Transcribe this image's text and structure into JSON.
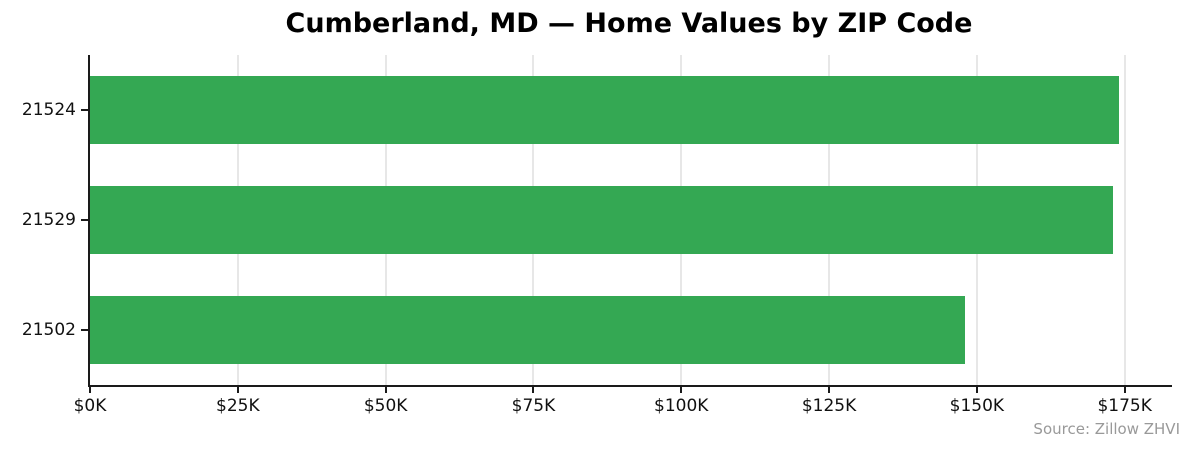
{
  "colors": {
    "bar": "#34a853",
    "grid": "#e7e7e7",
    "axis": "#1a1a1a",
    "source_text": "#999999",
    "background": "#ffffff"
  },
  "chart_data": {
    "type": "bar",
    "orientation": "horizontal",
    "title": "Cumberland, MD — Home Values by ZIP Code",
    "categories": [
      "21524",
      "21529",
      "21502"
    ],
    "values": [
      174000,
      173000,
      148000
    ],
    "values_label_unit": "USD",
    "xlabel": "",
    "ylabel": "",
    "xlim": [
      0,
      183000
    ],
    "xticks": [
      0,
      25000,
      50000,
      75000,
      100000,
      125000,
      150000,
      175000
    ],
    "xtick_labels": [
      "$0K",
      "$25K",
      "$50K",
      "$75K",
      "$100K",
      "$125K",
      "$150K",
      "$175K"
    ],
    "grid": "vertical-only",
    "axis_below_bars": true,
    "legend": "none",
    "annotation": "Source: Zillow ZHVI"
  }
}
